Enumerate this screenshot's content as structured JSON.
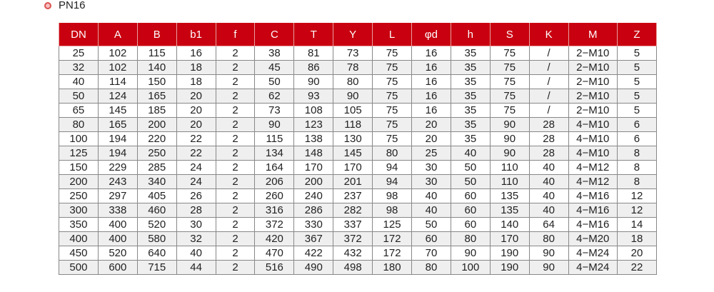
{
  "title": "PN16",
  "headers": [
    "DN",
    "A",
    "B",
    "b1",
    "f",
    "C",
    "T",
    "Y",
    "L",
    "φd",
    "h",
    "S",
    "K",
    "M",
    "Z"
  ],
  "rows": [
    [
      "25",
      "102",
      "115",
      "16",
      "2",
      "38",
      "81",
      "73",
      "75",
      "16",
      "35",
      "75",
      "/",
      "2−M10",
      "5"
    ],
    [
      "32",
      "102",
      "140",
      "18",
      "2",
      "45",
      "86",
      "78",
      "75",
      "16",
      "35",
      "75",
      "/",
      "2−M10",
      "5"
    ],
    [
      "40",
      "114",
      "150",
      "18",
      "2",
      "50",
      "90",
      "80",
      "75",
      "16",
      "35",
      "75",
      "/",
      "2−M10",
      "5"
    ],
    [
      "50",
      "124",
      "165",
      "20",
      "2",
      "62",
      "93",
      "90",
      "75",
      "16",
      "35",
      "75",
      "/",
      "2−M10",
      "5"
    ],
    [
      "65",
      "145",
      "185",
      "20",
      "2",
      "73",
      "108",
      "105",
      "75",
      "16",
      "35",
      "75",
      "/",
      "2−M10",
      "5"
    ],
    [
      "80",
      "165",
      "200",
      "20",
      "2",
      "90",
      "123",
      "118",
      "75",
      "20",
      "35",
      "90",
      "28",
      "4−M10",
      "6"
    ],
    [
      "100",
      "194",
      "220",
      "22",
      "2",
      "115",
      "138",
      "130",
      "75",
      "20",
      "35",
      "90",
      "28",
      "4−M10",
      "6"
    ],
    [
      "125",
      "194",
      "250",
      "22",
      "2",
      "134",
      "148",
      "145",
      "80",
      "25",
      "40",
      "90",
      "28",
      "4−M10",
      "8"
    ],
    [
      "150",
      "229",
      "285",
      "24",
      "2",
      "164",
      "170",
      "170",
      "94",
      "30",
      "50",
      "110",
      "40",
      "4−M12",
      "8"
    ],
    [
      "200",
      "243",
      "340",
      "24",
      "2",
      "206",
      "200",
      "201",
      "94",
      "30",
      "50",
      "110",
      "40",
      "4−M12",
      "8"
    ],
    [
      "250",
      "297",
      "405",
      "26",
      "2",
      "260",
      "240",
      "237",
      "98",
      "40",
      "60",
      "135",
      "40",
      "4−M16",
      "12"
    ],
    [
      "300",
      "338",
      "460",
      "28",
      "2",
      "316",
      "286",
      "282",
      "98",
      "40",
      "60",
      "135",
      "40",
      "4−M16",
      "12"
    ],
    [
      "350",
      "400",
      "520",
      "30",
      "2",
      "372",
      "330",
      "337",
      "125",
      "50",
      "60",
      "140",
      "64",
      "4−M16",
      "14"
    ],
    [
      "400",
      "400",
      "580",
      "32",
      "2",
      "420",
      "367",
      "372",
      "172",
      "60",
      "80",
      "170",
      "80",
      "4−M20",
      "18"
    ],
    [
      "450",
      "520",
      "640",
      "40",
      "2",
      "470",
      "422",
      "432",
      "172",
      "70",
      "90",
      "190",
      "90",
      "4−M24",
      "20"
    ],
    [
      "500",
      "600",
      "715",
      "44",
      "2",
      "516",
      "490",
      "498",
      "180",
      "80",
      "100",
      "190",
      "90",
      "4−M24",
      "22"
    ]
  ],
  "colors": {
    "header_bg": "#c8000f",
    "alt_row": "#efefef"
  }
}
